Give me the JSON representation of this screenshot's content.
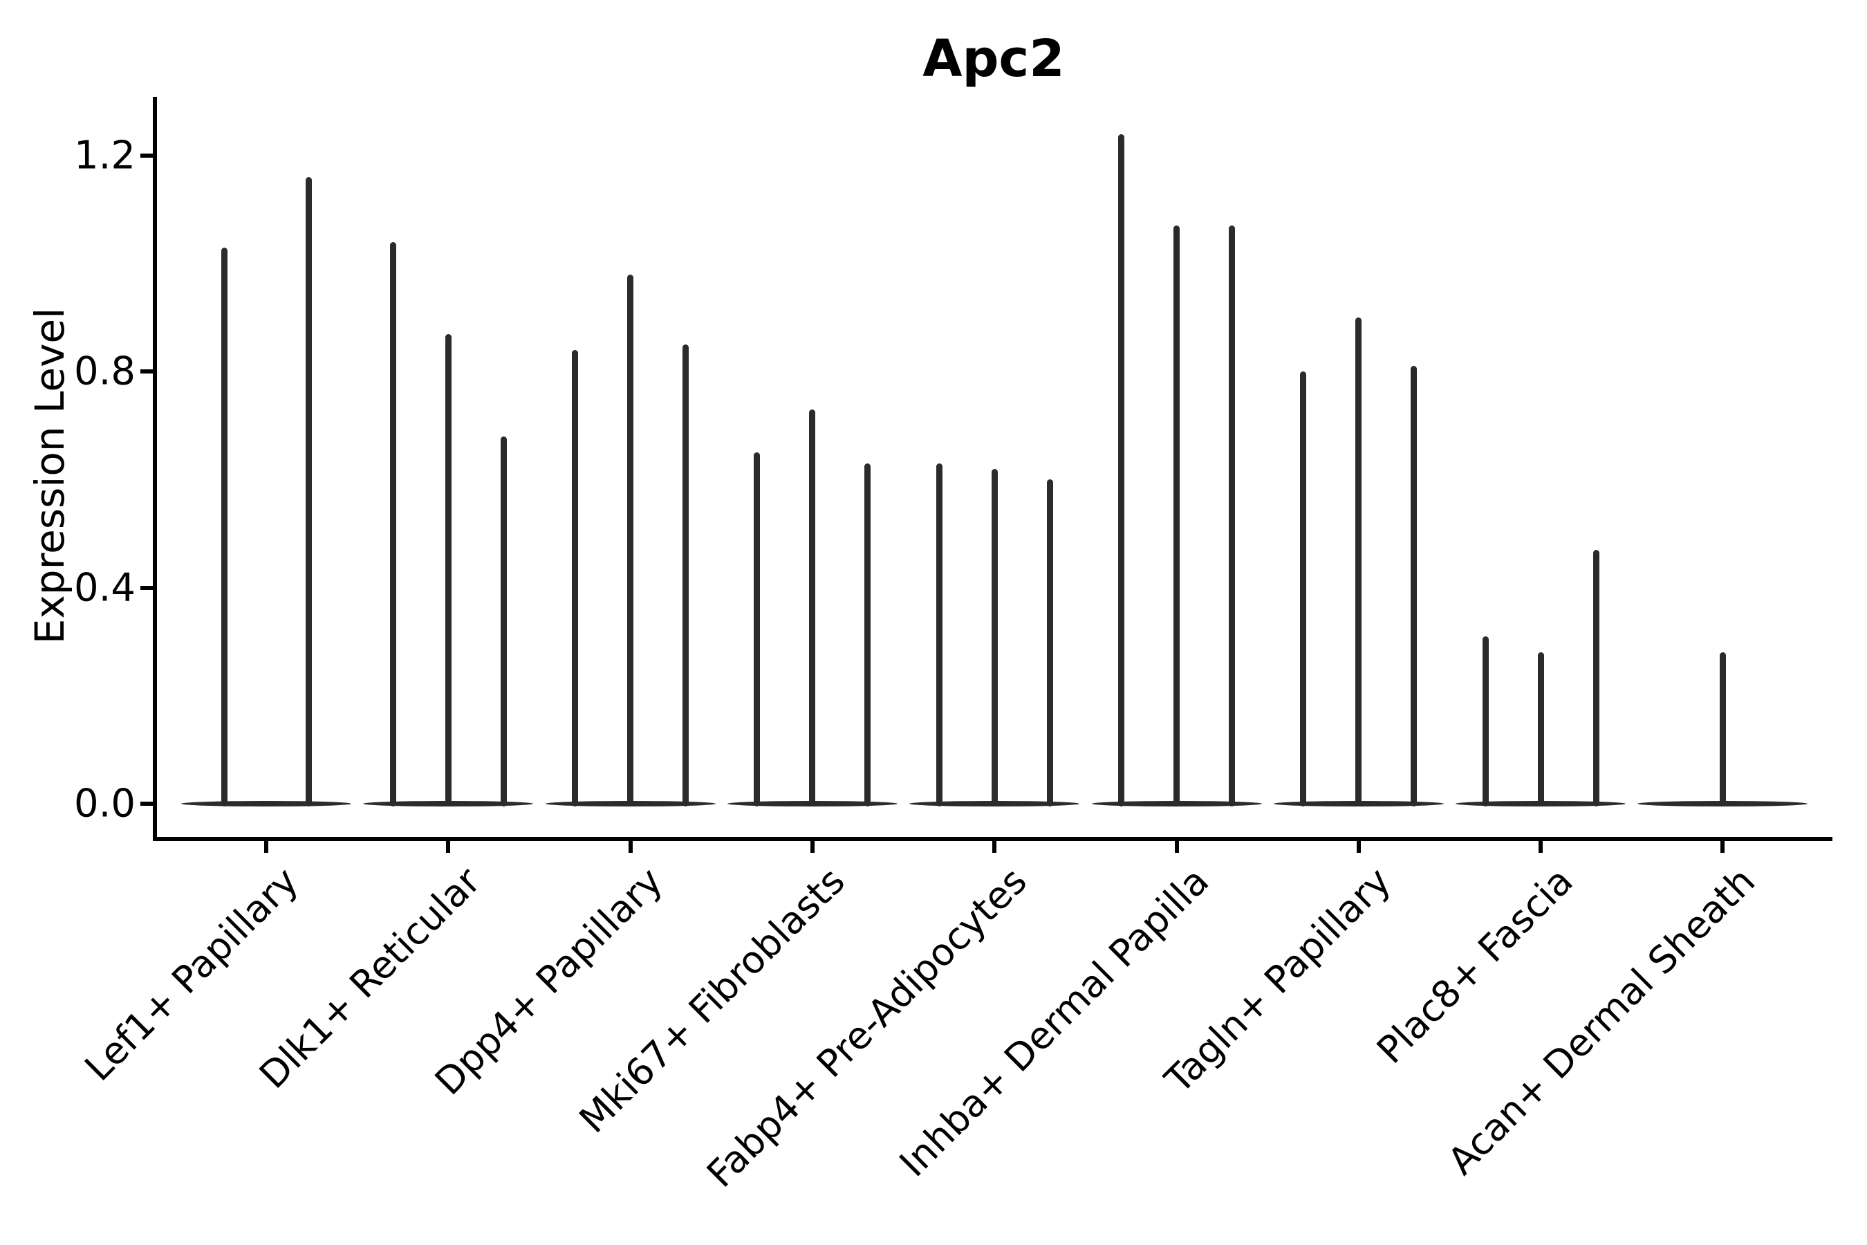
{
  "title": "Apc2",
  "y_axis": {
    "label": "Expression Level",
    "tick_labels": [
      "0.0",
      "0.4",
      "0.8",
      "1.2"
    ],
    "tick_values": [
      0.0,
      0.4,
      0.8,
      1.2
    ]
  },
  "chart_data": {
    "type": "violin",
    "title": "Apc2",
    "xlabel": "",
    "ylabel": "Expression Level",
    "ylim": [
      -0.06,
      1.31
    ],
    "yticks": [
      0.0,
      0.4,
      0.8,
      1.2
    ],
    "grid": false,
    "legend": false,
    "orientation": "vertical",
    "description": "Single-cell expression violin plot; each category shows 1-3 very thin spike-shaped violins (mass of zeros at baseline with narrow tail up to the max expression value).",
    "categories": [
      "Lef1+ Papillary",
      "Dlk1+ Reticular",
      "Dpp4+ Papillary",
      "Mki67+ Fibroblasts",
      "Fabp4+ Pre-Adipocytes",
      "Inhba+ Dermal Papilla",
      "Tagln+ Papillary",
      "Plac8+ Fascia",
      "Acan+ Dermal Sheath"
    ],
    "series": [
      {
        "category": "Lef1+ Papillary",
        "violin_peaks": [
          1.03,
          1.16
        ]
      },
      {
        "category": "Dlk1+ Reticular",
        "violin_peaks": [
          1.04,
          0.87,
          0.68
        ]
      },
      {
        "category": "Dpp4+ Papillary",
        "violin_peaks": [
          0.84,
          0.98,
          0.85
        ]
      },
      {
        "category": "Mki67+ Fibroblasts",
        "violin_peaks": [
          0.65,
          0.73,
          0.63
        ]
      },
      {
        "category": "Fabp4+ Pre-Adipocytes",
        "violin_peaks": [
          0.63,
          0.62,
          0.6
        ]
      },
      {
        "category": "Inhba+ Dermal Papilla",
        "violin_peaks": [
          1.24,
          1.07,
          1.07
        ]
      },
      {
        "category": "Tagln+ Papillary",
        "violin_peaks": [
          0.8,
          0.9,
          0.81
        ]
      },
      {
        "category": "Plac8+ Fascia",
        "violin_peaks": [
          0.31,
          0.28,
          0.47
        ]
      },
      {
        "category": "Acan+ Dermal Sheath",
        "violin_peaks": [
          0.28
        ]
      }
    ],
    "colors": {
      "violin": "#2b2b2b",
      "axis": "#000000",
      "text": "#000000",
      "background": "#ffffff"
    }
  }
}
